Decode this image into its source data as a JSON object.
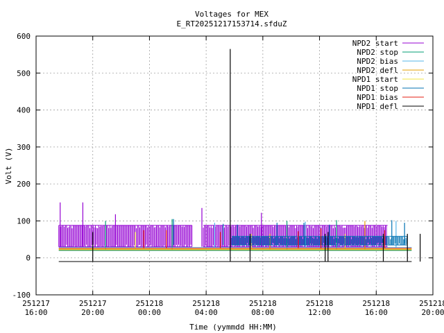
{
  "chart_data": {
    "type": "line",
    "title": "Voltages for MEX",
    "subtitle": "E_RT20251217153714.sfduZ",
    "xlabel": "Time (yymmdd HH:MM)",
    "ylabel": "Volt (V)",
    "ylim": [
      -100,
      600
    ],
    "xlim_hours": [
      0,
      28
    ],
    "yticks": [
      -100,
      0,
      100,
      200,
      300,
      400,
      500,
      600
    ],
    "xticks": [
      {
        "h": 0,
        "date": "251217",
        "time": "16:00"
      },
      {
        "h": 4,
        "date": "251217",
        "time": "20:00"
      },
      {
        "h": 8,
        "date": "251218",
        "time": "00:00"
      },
      {
        "h": 12,
        "date": "251218",
        "time": "04:00"
      },
      {
        "h": 16,
        "date": "251218",
        "time": "08:00"
      },
      {
        "h": 20,
        "date": "251218",
        "time": "12:00"
      },
      {
        "h": 24,
        "date": "251218",
        "time": "16:00"
      },
      {
        "h": 28,
        "date": "251218",
        "time": "20:00"
      }
    ],
    "grid": true,
    "legend_position": "top-right",
    "colors": {
      "NPD2_start": "#9400d3",
      "NPD2_stop": "#009e73",
      "NPD2_bias": "#56b4e9",
      "NPD2_defl": "#e69f00",
      "NPD1_start": "#f0e442",
      "NPD1_stop": "#0072b2",
      "NPD1_bias": "#e51e10",
      "NPD1_defl": "#000000"
    },
    "series": [
      {
        "name": "NPD2 start",
        "key": "NPD2_start",
        "segments": [
          {
            "x": [
              1.6,
              11.0
            ],
            "low": 30,
            "high": 88
          },
          {
            "x": [
              11.8,
              24.8
            ],
            "low": 30,
            "high": 88
          }
        ],
        "spikes": [
          {
            "x": 1.7,
            "y": 150
          },
          {
            "x": 3.3,
            "y": 150
          },
          {
            "x": 5.6,
            "y": 118
          },
          {
            "x": 11.7,
            "y": 135
          },
          {
            "x": 15.9,
            "y": 122
          }
        ]
      },
      {
        "name": "NPD2 stop",
        "key": "NPD2_stop",
        "level": 20,
        "spikes": [
          {
            "x": 4.9,
            "y": 100
          },
          {
            "x": 9.6,
            "y": 105
          },
          {
            "x": 17.7,
            "y": 100
          },
          {
            "x": 21.2,
            "y": 102
          }
        ]
      },
      {
        "name": "NPD2 bias",
        "key": "NPD2_bias",
        "level": 28,
        "spikes": [
          {
            "x": 12.6,
            "y": 95
          },
          {
            "x": 19.0,
            "y": 98
          },
          {
            "x": 25.4,
            "y": 100
          }
        ]
      },
      {
        "name": "NPD2 defl",
        "key": "NPD2_defl",
        "level": 22,
        "spikes": [
          {
            "x": 16.5,
            "y": 65
          },
          {
            "x": 23.2,
            "y": 100
          }
        ]
      },
      {
        "name": "NPD1 start",
        "key": "NPD1_start",
        "level": 24,
        "spikes": [
          {
            "x": 7.0,
            "y": 70
          },
          {
            "x": 15.2,
            "y": 65
          },
          {
            "x": 21.8,
            "y": 65
          }
        ]
      },
      {
        "name": "NPD1 stop",
        "key": "NPD1_stop",
        "segments": [
          {
            "x": [
              13.8,
              26.2
            ],
            "low": 35,
            "high": 58
          }
        ],
        "spikes": [
          {
            "x": 9.7,
            "y": 105
          },
          {
            "x": 13.2,
            "y": 92
          },
          {
            "x": 14.2,
            "y": 90
          },
          {
            "x": 17.0,
            "y": 95
          },
          {
            "x": 18.9,
            "y": 95
          },
          {
            "x": 20.7,
            "y": 90
          },
          {
            "x": 25.1,
            "y": 102
          },
          {
            "x": 26.0,
            "y": 95
          }
        ]
      },
      {
        "name": "NPD1 bias",
        "key": "NPD1_bias",
        "level": 26,
        "spikes": [
          {
            "x": 7.6,
            "y": 75
          },
          {
            "x": 9.2,
            "y": 75
          },
          {
            "x": 13.0,
            "y": 70
          },
          {
            "x": 18.5,
            "y": 72
          },
          {
            "x": 20.1,
            "y": 80
          },
          {
            "x": 24.6,
            "y": 75
          }
        ]
      },
      {
        "name": "NPD1 defl",
        "key": "NPD1_defl",
        "level": -10,
        "spikes": [
          {
            "x": 4.0,
            "y": 70
          },
          {
            "x": 13.7,
            "y": 565
          },
          {
            "x": 15.1,
            "y": 65
          },
          {
            "x": 20.4,
            "y": 65
          },
          {
            "x": 20.6,
            "y": 70
          },
          {
            "x": 24.5,
            "y": 65
          },
          {
            "x": 26.2,
            "y": 65
          },
          {
            "x": 27.1,
            "y": 65
          }
        ]
      }
    ]
  }
}
